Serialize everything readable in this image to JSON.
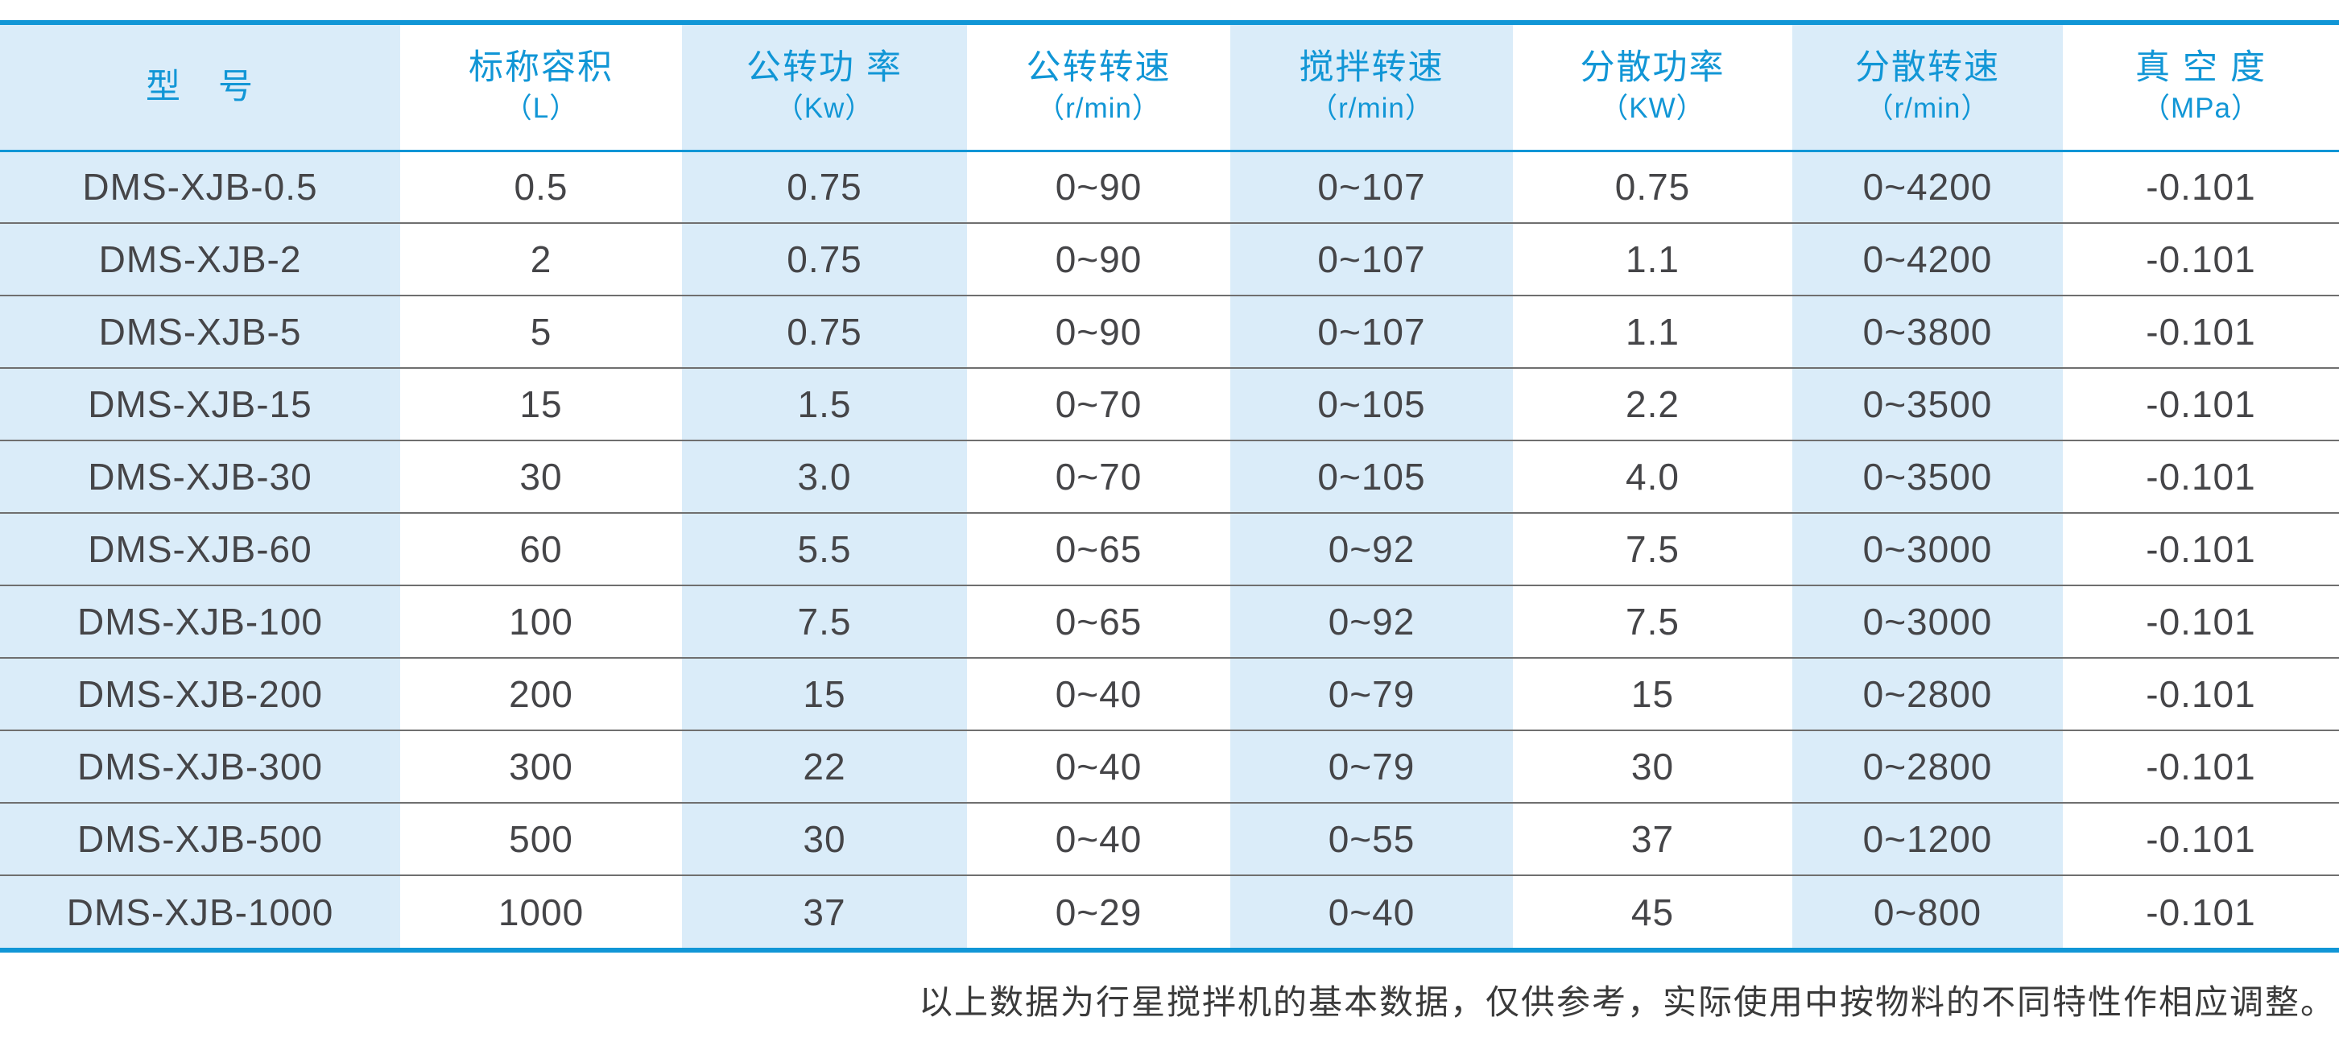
{
  "table": {
    "columns": [
      {
        "label": "型　号",
        "unit": ""
      },
      {
        "label": "标称容积",
        "unit": "（L）"
      },
      {
        "label": "公转功 率",
        "unit": "（Kw）"
      },
      {
        "label": "公转转速",
        "unit": "（r/min）"
      },
      {
        "label": "搅拌转速",
        "unit": "（r/min）"
      },
      {
        "label": "分散功率",
        "unit": "（KW）"
      },
      {
        "label": "分散转速",
        "unit": "（r/min）"
      },
      {
        "label": "真 空 度",
        "unit": "（MPa）"
      }
    ],
    "rows": [
      [
        "DMS-XJB-0.5",
        "0.5",
        "0.75",
        "0~90",
        "0~107",
        "0.75",
        "0~4200",
        "-0.101"
      ],
      [
        "DMS-XJB-2",
        "2",
        "0.75",
        "0~90",
        "0~107",
        "1.1",
        "0~4200",
        "-0.101"
      ],
      [
        "DMS-XJB-5",
        "5",
        "0.75",
        "0~90",
        "0~107",
        "1.1",
        "0~3800",
        "-0.101"
      ],
      [
        "DMS-XJB-15",
        "15",
        "1.5",
        "0~70",
        "0~105",
        "2.2",
        "0~3500",
        "-0.101"
      ],
      [
        "DMS-XJB-30",
        "30",
        "3.0",
        "0~70",
        "0~105",
        "4.0",
        "0~3500",
        "-0.101"
      ],
      [
        "DMS-XJB-60",
        "60",
        "5.5",
        "0~65",
        "0~92",
        "7.5",
        "0~3000",
        "-0.101"
      ],
      [
        "DMS-XJB-100",
        "100",
        "7.5",
        "0~65",
        "0~92",
        "7.5",
        "0~3000",
        "-0.101"
      ],
      [
        "DMS-XJB-200",
        "200",
        "15",
        "0~40",
        "0~79",
        "15",
        "0~2800",
        "-0.101"
      ],
      [
        "DMS-XJB-300",
        "300",
        "22",
        "0~40",
        "0~79",
        "30",
        "0~2800",
        "-0.101"
      ],
      [
        "DMS-XJB-500",
        "500",
        "30",
        "0~40",
        "0~55",
        "37",
        "0~1200",
        "-0.101"
      ],
      [
        "DMS-XJB-1000",
        "1000",
        "37",
        "0~29",
        "0~40",
        "45",
        "0~800",
        "-0.101"
      ]
    ]
  },
  "footnote": "以上数据为行星搅拌机的基本数据，仅供参考，实际使用中按物料的不同特性作相应调整。",
  "colors": {
    "accent": "#1196d6",
    "stripe": "#daecf9",
    "row_line": "#6f6f6f",
    "body_text": "#454548",
    "footer_text": "#3a3a3a"
  }
}
